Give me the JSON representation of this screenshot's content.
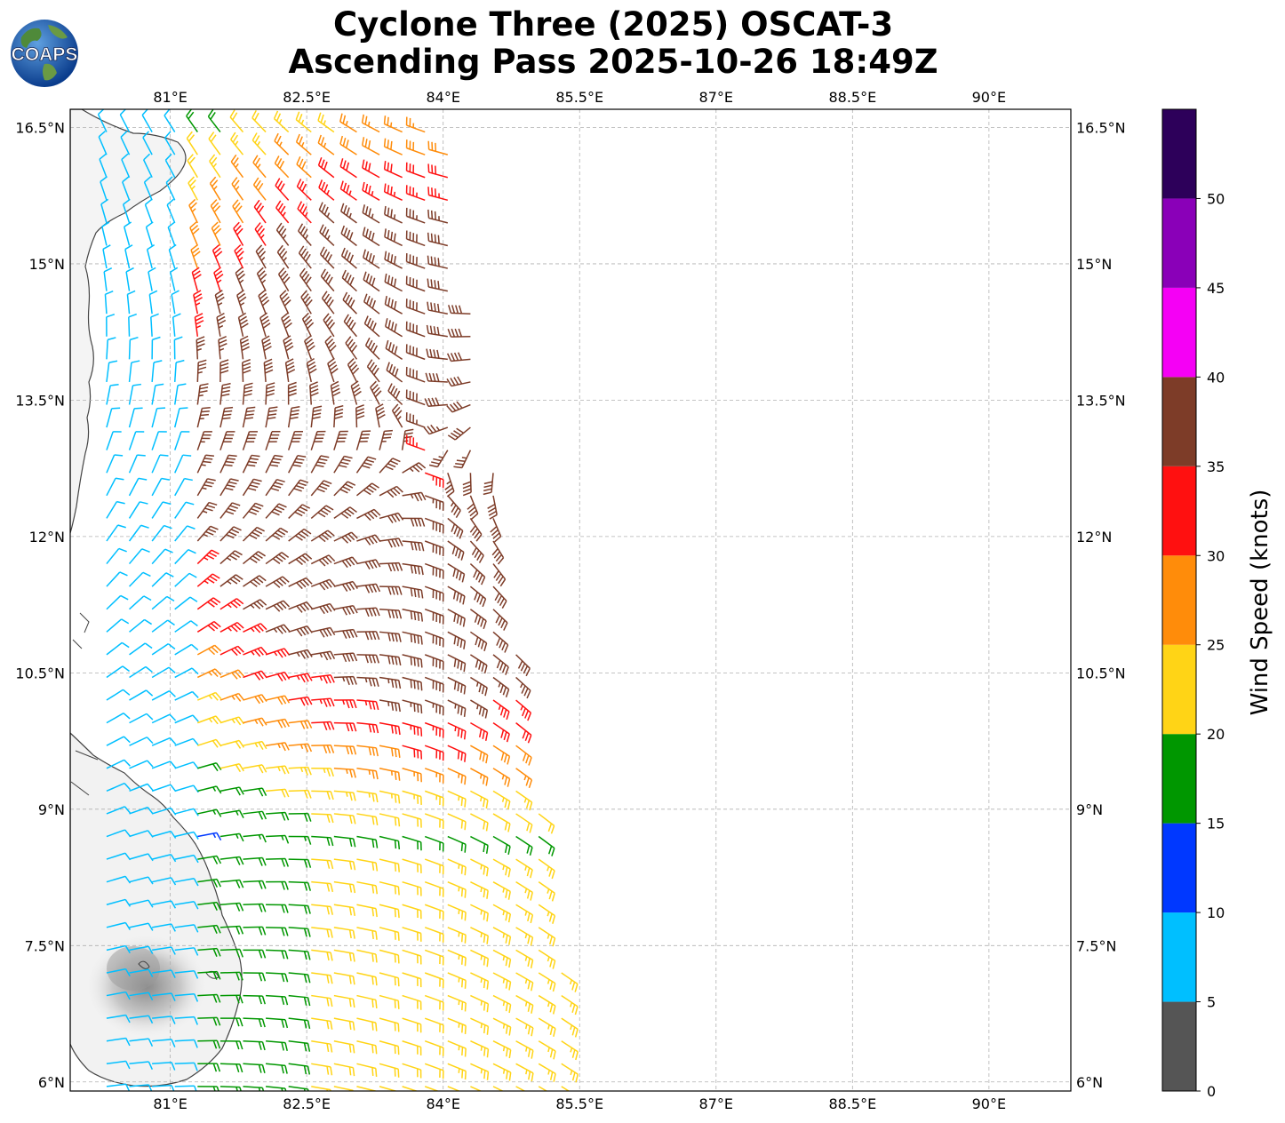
{
  "title": {
    "line1": "Cyclone Three (2025) OSCAT-3",
    "line2": "Ascending Pass 2025-10-26 18:49Z"
  },
  "logo": {
    "text": "COAPS",
    "icon": "coaps-globe-logo"
  },
  "map": {
    "lon_ticks": [
      "81°E",
      "82.5°E",
      "84°E",
      "85.5°E",
      "87°E",
      "88.5°E",
      "90°E"
    ],
    "lat_ticks": [
      "16.5°N",
      "15°N",
      "13.5°N",
      "12°N",
      "10.5°N",
      "9°N",
      "7.5°N",
      "6°N"
    ],
    "lon_values": [
      81,
      82.5,
      84,
      85.5,
      87,
      88.5,
      90
    ],
    "lat_values": [
      16.5,
      15,
      13.5,
      12,
      10.5,
      9,
      7.5,
      6
    ],
    "lon_range": [
      79.9,
      90.9
    ],
    "lat_range": [
      5.9,
      16.7
    ],
    "gridlines": true,
    "barb_data_units": "knots"
  },
  "colorbar": {
    "label": "Wind Speed (knots)",
    "ticks": [
      "0",
      "5",
      "10",
      "15",
      "20",
      "25",
      "30",
      "35",
      "40",
      "45",
      "50"
    ],
    "bins": [
      {
        "min": 0,
        "max": 5,
        "color": "#555555"
      },
      {
        "min": 5,
        "max": 10,
        "color": "#00bfff"
      },
      {
        "min": 10,
        "max": 15,
        "color": "#0038ff"
      },
      {
        "min": 15,
        "max": 20,
        "color": "#009700"
      },
      {
        "min": 20,
        "max": 25,
        "color": "#ffd416"
      },
      {
        "min": 25,
        "max": 30,
        "color": "#ff8c0a"
      },
      {
        "min": 30,
        "max": 35,
        "color": "#ff1010"
      },
      {
        "min": 35,
        "max": 40,
        "color": "#7d3c28"
      },
      {
        "min": 40,
        "max": 45,
        "color": "#f500f5"
      },
      {
        "min": 45,
        "max": 50,
        "color": "#8a00b8"
      },
      {
        "min": 50,
        "max": 55,
        "color": "#2d005a"
      }
    ]
  }
}
